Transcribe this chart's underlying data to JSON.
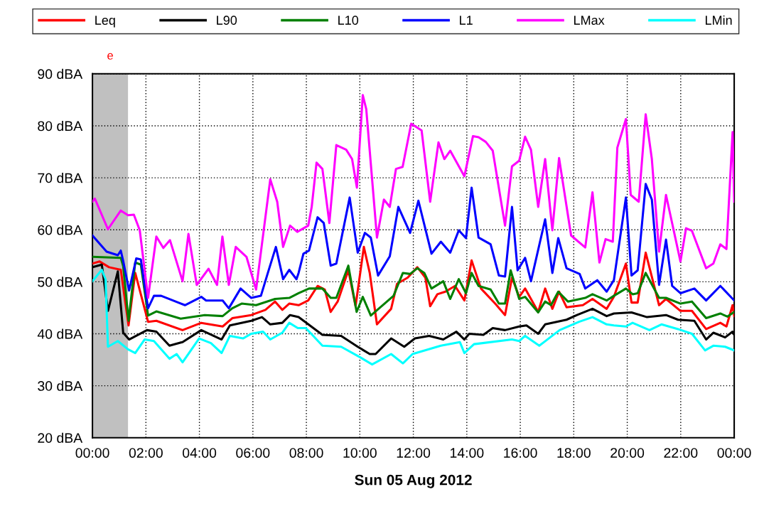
{
  "chart_data": {
    "type": "line",
    "xlabel": "Sun 05 Aug 2012",
    "xlim": [
      0,
      24
    ],
    "ylim": [
      20,
      90
    ],
    "xticks": [
      {
        "value": 0,
        "label": "00:00"
      },
      {
        "value": 2,
        "label": "02:00"
      },
      {
        "value": 4,
        "label": "04:00"
      },
      {
        "value": 6,
        "label": "06:00"
      },
      {
        "value": 8,
        "label": "08:00"
      },
      {
        "value": 10,
        "label": "10:00"
      },
      {
        "value": 12,
        "label": "12:00"
      },
      {
        "value": 14,
        "label": "14:00"
      },
      {
        "value": 16,
        "label": "16:00"
      },
      {
        "value": 18,
        "label": "18:00"
      },
      {
        "value": 20,
        "label": "20:00"
      },
      {
        "value": 22,
        "label": "22:00"
      },
      {
        "value": 24,
        "label": "00:00"
      }
    ],
    "yticks": [
      {
        "value": 20,
        "label": "20 dBA"
      },
      {
        "value": 30,
        "label": "30 dBA"
      },
      {
        "value": 40,
        "label": "40 dBA"
      },
      {
        "value": 50,
        "label": "50 dBA"
      },
      {
        "value": 60,
        "label": "60 dBA"
      },
      {
        "value": 70,
        "label": "70 dBA"
      },
      {
        "value": 80,
        "label": "80 dBA"
      },
      {
        "value": 90,
        "label": "90 dBA"
      }
    ],
    "grid": true,
    "legend": "top",
    "line_style": "solid",
    "marker": "none",
    "bands": [
      {
        "axis": "x",
        "from": 0,
        "to": 1.33,
        "label": "e",
        "color": "#c0c0c0"
      }
    ],
    "series": [
      {
        "name": "Leq",
        "color": "#ff0000",
        "x": [
          0,
          0.27,
          0.62,
          1.06,
          1.35,
          1.6,
          2.08,
          2.39,
          3.37,
          4.07,
          4.87,
          5.23,
          5.94,
          6.47,
          6.83,
          7.1,
          7.36,
          7.71,
          8.07,
          8.42,
          8.69,
          8.91,
          9.17,
          9.57,
          9.84,
          10.15,
          10.37,
          10.64,
          11.17,
          11.39,
          11.79,
          12.15,
          12.45,
          12.63,
          12.9,
          13.2,
          13.56,
          13.91,
          14.18,
          14.53,
          15.06,
          15.43,
          15.69,
          15.96,
          16.18,
          16.67,
          16.93,
          17.2,
          17.45,
          17.73,
          18.34,
          18.7,
          19.23,
          19.5,
          19.95,
          20.16,
          20.39,
          20.69,
          21.19,
          21.45,
          21.99,
          22.42,
          22.95,
          23.48,
          23.71,
          23.94,
          24
        ],
        "values": [
          53.5,
          53.9,
          52.8,
          52.3,
          41.6,
          51.7,
          42.3,
          42.5,
          40.7,
          42.1,
          41.4,
          43.0,
          43.6,
          44.6,
          46.2,
          44.6,
          45.8,
          45.5,
          46.4,
          49.2,
          48.5,
          44.2,
          46.2,
          52.2,
          45.3,
          56.7,
          51.7,
          41.8,
          44.8,
          49.6,
          50.8,
          52.8,
          50.8,
          45.3,
          47.6,
          48.1,
          49.2,
          46.4,
          54.1,
          48.7,
          45.8,
          43.6,
          50.8,
          47.1,
          48.7,
          44.2,
          48.7,
          44.8,
          48.1,
          45.1,
          45.5,
          46.7,
          44.8,
          47.1,
          53.5,
          46.0,
          46.0,
          55.6,
          45.5,
          46.7,
          44.4,
          44.4,
          40.9,
          42.1,
          41.4,
          45.5,
          43.4
        ]
      },
      {
        "name": "L90",
        "color": "#000000",
        "x": [
          0,
          0.35,
          0.58,
          0.95,
          1.15,
          1.37,
          2.04,
          2.39,
          2.88,
          3.37,
          4.07,
          4.83,
          5.14,
          5.94,
          6.34,
          6.65,
          7.1,
          7.39,
          7.71,
          8.6,
          9.3,
          9.92,
          10.37,
          10.59,
          11.17,
          11.66,
          12.06,
          12.59,
          13.12,
          13.61,
          13.91,
          14.09,
          14.62,
          14.97,
          15.43,
          15.96,
          16.23,
          16.67,
          16.93,
          17.73,
          18.12,
          18.7,
          19.23,
          19.5,
          20.16,
          20.74,
          21.45,
          21.9,
          22.51,
          22.95,
          23.22,
          23.66,
          23.94,
          24
        ],
        "values": [
          52.8,
          53.3,
          44.4,
          52.0,
          40.2,
          38.9,
          40.7,
          40.4,
          37.7,
          38.4,
          40.7,
          38.9,
          41.6,
          42.5,
          43.2,
          41.8,
          42.1,
          43.6,
          43.2,
          39.8,
          39.6,
          37.5,
          36.1,
          36.1,
          39.1,
          37.5,
          39.1,
          39.6,
          38.9,
          40.4,
          38.9,
          40.0,
          39.8,
          41.1,
          40.7,
          41.4,
          41.6,
          40.0,
          41.8,
          42.7,
          43.6,
          44.8,
          43.4,
          43.9,
          44.1,
          43.2,
          43.6,
          42.7,
          42.5,
          38.9,
          40.2,
          39.3,
          40.4,
          39.8
        ]
      },
      {
        "name": "L10",
        "color": "#008000",
        "x": [
          0,
          1.06,
          1.15,
          1.35,
          1.6,
          1.81,
          2.08,
          2.39,
          3.3,
          4.2,
          4.87,
          5.23,
          5.58,
          6.12,
          6.83,
          7.36,
          7.71,
          8.1,
          8.6,
          8.91,
          9.12,
          9.57,
          9.88,
          10.11,
          10.41,
          11.26,
          11.61,
          11.88,
          12.15,
          12.41,
          12.68,
          13.12,
          13.38,
          13.7,
          13.97,
          14.18,
          14.44,
          14.89,
          15.2,
          15.43,
          15.64,
          15.96,
          16.18,
          16.67,
          16.93,
          17.15,
          17.42,
          17.78,
          18.43,
          18.7,
          19.23,
          19.5,
          19.95,
          20.2,
          20.39,
          20.69,
          21.19,
          21.45,
          21.99,
          22.42,
          22.95,
          23.48,
          23.75,
          24
        ],
        "values": [
          54.8,
          54.6,
          53.0,
          42.5,
          53.7,
          53.3,
          43.5,
          44.3,
          42.9,
          43.6,
          43.4,
          44.9,
          45.8,
          45.5,
          46.7,
          46.9,
          47.8,
          48.7,
          48.7,
          46.9,
          46.9,
          53.1,
          44.2,
          47.1,
          43.5,
          47.3,
          51.7,
          51.5,
          52.6,
          51.7,
          48.7,
          50.1,
          46.7,
          50.5,
          47.8,
          51.7,
          49.2,
          48.5,
          45.8,
          45.8,
          52.2,
          46.7,
          47.1,
          44.1,
          46.2,
          45.5,
          48.1,
          46.2,
          46.9,
          47.6,
          46.4,
          47.3,
          48.7,
          47.6,
          47.8,
          51.7,
          46.9,
          46.9,
          45.8,
          46.2,
          43.0,
          43.9,
          43.3,
          44.2
        ]
      },
      {
        "name": "L1",
        "color": "#0000ff",
        "x": [
          0,
          0.53,
          0.95,
          1.06,
          1.15,
          1.37,
          1.64,
          1.81,
          2.08,
          2.3,
          2.57,
          3.46,
          4.07,
          4.25,
          4.87,
          5.1,
          5.54,
          5.94,
          6.3,
          6.56,
          6.86,
          7.13,
          7.36,
          7.63,
          7.71,
          7.89,
          8.1,
          8.42,
          8.65,
          8.91,
          9.12,
          9.62,
          9.92,
          10.19,
          10.41,
          10.68,
          11.12,
          11.44,
          11.88,
          12.19,
          12.68,
          13.03,
          13.38,
          13.7,
          13.97,
          14.18,
          14.44,
          14.89,
          15.2,
          15.43,
          15.69,
          15.9,
          16.18,
          16.4,
          16.93,
          17.2,
          17.42,
          17.73,
          18.22,
          18.43,
          18.88,
          19.23,
          19.5,
          19.95,
          20.16,
          20.39,
          20.69,
          20.92,
          21.19,
          21.45,
          21.68,
          21.99,
          22.51,
          22.95,
          23.48,
          24
        ],
        "values": [
          58.9,
          55.8,
          55.1,
          56.0,
          54.0,
          48.3,
          54.5,
          54.3,
          44.9,
          47.3,
          47.3,
          45.5,
          47.1,
          46.4,
          46.4,
          44.9,
          48.7,
          46.9,
          47.3,
          51.7,
          56.7,
          50.5,
          52.3,
          50.5,
          51.7,
          55.4,
          56.0,
          62.4,
          61.3,
          53.1,
          53.5,
          66.2,
          55.6,
          59.4,
          58.5,
          51.2,
          54.9,
          64.4,
          59.4,
          65.6,
          55.4,
          57.7,
          55.6,
          59.9,
          58.4,
          68.1,
          58.5,
          57.2,
          51.2,
          51.0,
          64.4,
          52.2,
          54.6,
          50.1,
          62.0,
          51.7,
          58.4,
          52.6,
          51.5,
          48.7,
          50.3,
          48.1,
          50.3,
          66.2,
          51.2,
          52.2,
          68.8,
          65.8,
          49.4,
          58.1,
          49.2,
          47.8,
          48.7,
          46.4,
          49.2,
          46.4
        ]
      },
      {
        "name": "LMax",
        "color": "#ff00ff",
        "x": [
          0,
          0.09,
          0.58,
          1.06,
          1.33,
          1.55,
          1.77,
          2.08,
          2.39,
          2.65,
          2.9,
          3.37,
          3.59,
          3.9,
          4.34,
          4.66,
          4.86,
          5.1,
          5.36,
          5.76,
          6.12,
          6.65,
          6.91,
          7.13,
          7.39,
          7.66,
          8.07,
          8.2,
          8.38,
          8.6,
          8.86,
          9.12,
          9.49,
          9.71,
          9.89,
          10.11,
          10.24,
          10.64,
          10.9,
          11.12,
          11.35,
          11.6,
          11.92,
          12.31,
          12.63,
          12.94,
          13.16,
          13.38,
          13.91,
          14.23,
          14.44,
          14.71,
          14.97,
          15.43,
          15.69,
          15.96,
          16.18,
          16.4,
          16.67,
          16.93,
          17.2,
          17.45,
          17.9,
          18.43,
          18.7,
          18.96,
          19.19,
          19.46,
          19.63,
          19.95,
          20.13,
          20.43,
          20.69,
          20.92,
          21.19,
          21.45,
          21.99,
          22.2,
          22.42,
          22.95,
          23.22,
          23.48,
          23.71,
          23.94,
          24
        ],
        "values": [
          65.4,
          66.0,
          60.1,
          63.7,
          62.8,
          62.9,
          59.9,
          46.9,
          58.7,
          56.5,
          58.0,
          50.1,
          59.2,
          49.4,
          52.5,
          49.4,
          58.7,
          49.4,
          56.7,
          54.8,
          48.5,
          69.7,
          65.4,
          56.7,
          60.8,
          59.6,
          60.8,
          64.4,
          72.9,
          71.7,
          61.3,
          76.3,
          75.4,
          73.6,
          68.1,
          85.9,
          83.2,
          58.5,
          65.8,
          64.4,
          71.7,
          72.1,
          80.4,
          79.1,
          65.4,
          76.8,
          73.6,
          75.2,
          70.3,
          78.0,
          77.8,
          76.9,
          75.2,
          60.8,
          72.2,
          73.3,
          77.9,
          75.4,
          64.4,
          73.6,
          59.9,
          73.8,
          58.9,
          56.6,
          67.2,
          53.7,
          58.2,
          57.7,
          75.8,
          81.3,
          66.7,
          65.4,
          82.2,
          73.6,
          55.8,
          66.7,
          53.9,
          60.3,
          59.8,
          52.6,
          53.5,
          57.2,
          56.3,
          78.8,
          65.4
        ]
      },
      {
        "name": "LMin",
        "color": "#00ffff",
        "x": [
          0,
          0.35,
          0.49,
          0.58,
          0.95,
          1.33,
          1.6,
          1.95,
          2.3,
          2.88,
          3.15,
          3.37,
          3.99,
          4.43,
          4.83,
          5.14,
          5.63,
          5.94,
          6.38,
          6.65,
          7.1,
          7.36,
          7.68,
          7.98,
          8.6,
          9.3,
          10.0,
          10.46,
          11.17,
          11.61,
          11.97,
          13.03,
          13.74,
          13.91,
          14.27,
          15.69,
          15.96,
          16.18,
          16.71,
          17.47,
          18.2,
          18.7,
          19.23,
          19.5,
          19.95,
          20.2,
          20.83,
          21.28,
          21.9,
          22.42,
          22.91,
          23.22,
          23.66,
          24
        ],
        "values": [
          50.1,
          52.3,
          50.5,
          37.5,
          38.6,
          37.0,
          36.3,
          38.9,
          38.6,
          35.2,
          36.1,
          34.5,
          39.1,
          38.2,
          36.3,
          39.6,
          39.1,
          40.0,
          40.4,
          38.9,
          40.2,
          42.1,
          41.1,
          41.1,
          37.7,
          37.5,
          35.5,
          34.1,
          36.1,
          34.3,
          36.1,
          37.7,
          38.4,
          36.3,
          38.0,
          38.9,
          38.6,
          39.6,
          37.7,
          40.7,
          42.3,
          43.2,
          41.8,
          41.6,
          41.4,
          42.1,
          40.7,
          41.8,
          40.9,
          40.0,
          36.8,
          37.7,
          37.5,
          36.8
        ]
      }
    ]
  }
}
